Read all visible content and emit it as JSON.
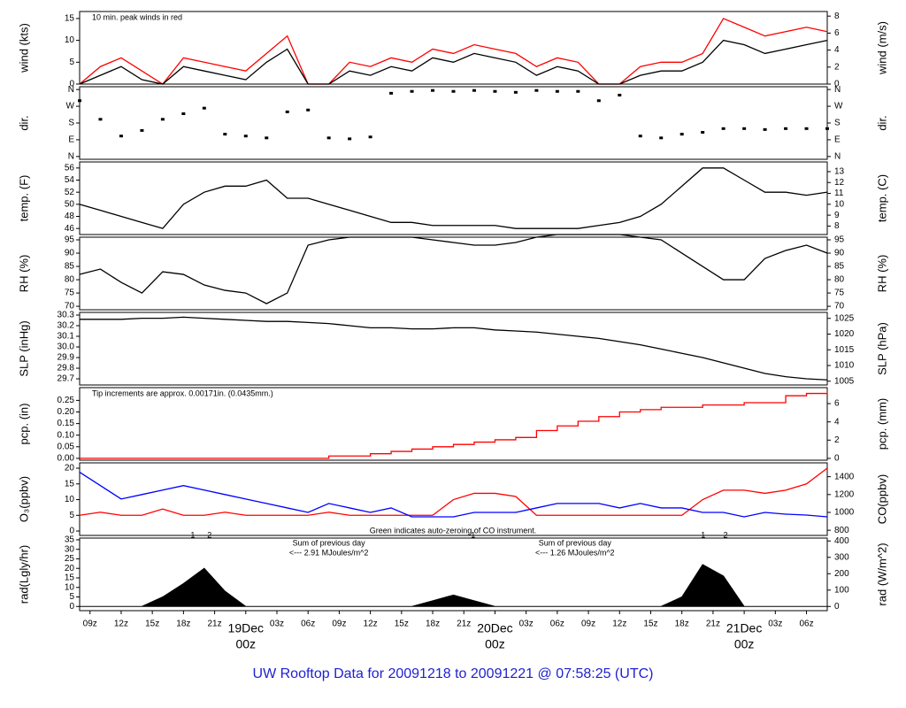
{
  "footer_title": "UW Rooftop Data for 20091218  to  20091221 @ 07:58:25  (UTC)",
  "chart_data": [
    {
      "type": "line",
      "ylabel": "wind (kts)",
      "y2label": "wind (m/s)",
      "note": "10 min. peak winds in red",
      "x": [
        8,
        10,
        12,
        14,
        16,
        18,
        20,
        22,
        24,
        26,
        28,
        30,
        32,
        34,
        36,
        38,
        40,
        42,
        44,
        46,
        48,
        50,
        52,
        54,
        56,
        58,
        60,
        62,
        64,
        66,
        68,
        70,
        72,
        74,
        76,
        78,
        80
      ],
      "xlim": [
        8,
        80
      ],
      "ylim": [
        0,
        16.6
      ],
      "yticks": [
        0,
        5,
        10,
        15
      ],
      "y2lim": [
        0,
        8.54
      ],
      "y2ticks": [
        0,
        2,
        4,
        6,
        8
      ],
      "series": [
        {
          "color": "#ff0000",
          "values": [
            0,
            4,
            6,
            3,
            0,
            6,
            5,
            4,
            3,
            7,
            11,
            0,
            0,
            5,
            4,
            6,
            5,
            8,
            7,
            9,
            8,
            7,
            4,
            6,
            5,
            0,
            0,
            4,
            5,
            5,
            7,
            15,
            13,
            11,
            12,
            13,
            12
          ]
        },
        {
          "color": "#000000",
          "values": [
            0,
            2,
            4,
            1,
            0,
            4,
            3,
            2,
            1,
            5,
            8,
            0,
            0,
            3,
            2,
            4,
            3,
            6,
            5,
            7,
            6,
            5,
            2,
            4,
            3,
            0,
            0,
            2,
            3,
            3,
            5,
            10,
            9,
            7,
            8,
            9,
            10
          ]
        }
      ]
    },
    {
      "type": "scatter",
      "ylabel": "dir.",
      "y2label": "dir.",
      "x": [
        8,
        10,
        12,
        14,
        16,
        18,
        20,
        22,
        24,
        26,
        28,
        30,
        32,
        34,
        36,
        38,
        40,
        42,
        44,
        46,
        48,
        50,
        52,
        54,
        56,
        58,
        60,
        62,
        64,
        66,
        68,
        70,
        72,
        74,
        76,
        78,
        80
      ],
      "xlim": [
        8,
        80
      ],
      "ylim": [
        -15,
        375
      ],
      "yticks": [
        {
          "value": 0,
          "label": "N"
        },
        {
          "value": 90,
          "label": "E"
        },
        {
          "value": 180,
          "label": "S"
        },
        {
          "value": 270,
          "label": "W"
        },
        {
          "value": 360,
          "label": "N"
        }
      ],
      "y2lim": [
        -15,
        375
      ],
      "y2ticks": [
        {
          "value": 0,
          "label": "N"
        },
        {
          "value": 90,
          "label": "E"
        },
        {
          "value": 180,
          "label": "S"
        },
        {
          "value": 270,
          "label": "W"
        },
        {
          "value": 360,
          "label": "N"
        }
      ],
      "series": [
        {
          "color": "#000000",
          "values": [
            300,
            200,
            110,
            140,
            200,
            230,
            260,
            120,
            110,
            100,
            240,
            250,
            100,
            95,
            105,
            340,
            350,
            355,
            350,
            355,
            350,
            345,
            355,
            350,
            350,
            300,
            330,
            110,
            100,
            120,
            130,
            150,
            150,
            145,
            150,
            150,
            150
          ]
        }
      ]
    },
    {
      "type": "line",
      "ylabel": "temp. (F)",
      "y2label": "temp. (C)",
      "x": [
        8,
        10,
        12,
        14,
        16,
        18,
        20,
        22,
        24,
        26,
        28,
        30,
        32,
        34,
        36,
        38,
        40,
        42,
        44,
        46,
        48,
        50,
        52,
        54,
        56,
        58,
        60,
        62,
        64,
        66,
        68,
        70,
        72,
        74,
        76,
        78,
        80
      ],
      "xlim": [
        8,
        80
      ],
      "ylim": [
        45,
        57
      ],
      "yticks": [
        46,
        48,
        50,
        52,
        54,
        56
      ],
      "y2lim": [
        7.22,
        13.89
      ],
      "y2ticks": [
        8,
        9,
        10,
        11,
        12,
        13
      ],
      "series": [
        {
          "color": "#000000",
          "values": [
            50,
            49,
            48,
            47,
            46,
            50,
            52,
            53,
            53,
            54,
            51,
            51,
            50,
            49,
            48,
            47,
            47,
            46.5,
            46.5,
            46.5,
            46.5,
            46,
            46,
            46,
            46,
            46.5,
            47,
            48,
            50,
            53,
            56,
            56,
            54,
            52,
            52,
            51.5,
            52
          ]
        }
      ]
    },
    {
      "type": "line",
      "ylabel": "RH (%)",
      "y2label": "RH (%)",
      "x": [
        8,
        10,
        12,
        14,
        16,
        18,
        20,
        22,
        24,
        26,
        28,
        30,
        32,
        34,
        36,
        38,
        40,
        42,
        44,
        46,
        48,
        50,
        52,
        54,
        56,
        58,
        60,
        62,
        64,
        66,
        68,
        70,
        72,
        74,
        76,
        78,
        80
      ],
      "xlim": [
        8,
        80
      ],
      "ylim": [
        68.7,
        96
      ],
      "yticks": [
        70,
        75,
        80,
        85,
        90,
        95
      ],
      "y2lim": [
        68.7,
        96
      ],
      "y2ticks": [
        70,
        75,
        80,
        85,
        90,
        95
      ],
      "series": [
        {
          "color": "#000000",
          "values": [
            82,
            84,
            79,
            75,
            83,
            82,
            78,
            76,
            75,
            71,
            75,
            93,
            95,
            96,
            96,
            96,
            96,
            95,
            94,
            93,
            93,
            94,
            96,
            97,
            97,
            97,
            97,
            96,
            95,
            90,
            85,
            80,
            80,
            88,
            91,
            93,
            90
          ]
        }
      ]
    },
    {
      "type": "line",
      "ylabel": "SLP (inHg)",
      "y2label": "SLP (hPa)",
      "x": [
        8,
        10,
        12,
        14,
        16,
        18,
        20,
        22,
        24,
        26,
        28,
        30,
        32,
        34,
        36,
        38,
        40,
        42,
        44,
        46,
        48,
        50,
        52,
        54,
        56,
        58,
        60,
        62,
        64,
        66,
        68,
        70,
        72,
        74,
        76,
        78,
        80
      ],
      "xlim": [
        8,
        80
      ],
      "ylim": [
        29.642,
        30.325
      ],
      "yticks": [
        29.7,
        29.8,
        29.9,
        {
          "value": 30,
          "label": "30.0"
        },
        30.1,
        30.2,
        30.3
      ],
      "y2lim": [
        1003.8,
        1026.9
      ],
      "y2ticks": [
        1005,
        1010,
        1015,
        1020,
        1025
      ],
      "series": [
        {
          "color": "#000000",
          "values": [
            30.26,
            30.26,
            30.26,
            30.27,
            30.27,
            30.28,
            30.27,
            30.26,
            30.25,
            30.24,
            30.24,
            30.23,
            30.22,
            30.2,
            30.18,
            30.18,
            30.17,
            30.17,
            30.18,
            30.18,
            30.16,
            30.15,
            30.14,
            30.12,
            30.1,
            30.08,
            30.05,
            30.02,
            29.98,
            29.94,
            29.9,
            29.85,
            29.8,
            29.75,
            29.72,
            29.7,
            29.69
          ]
        }
      ]
    },
    {
      "type": "step",
      "ylabel": "pcp. (in)",
      "y2label": "pcp. (mm)",
      "note": "Tip increments are approx. 0.00171in. (0.0435mm.)",
      "x": [
        8,
        10,
        12,
        14,
        16,
        18,
        20,
        22,
        24,
        26,
        28,
        30,
        32,
        34,
        36,
        38,
        40,
        42,
        44,
        46,
        48,
        50,
        52,
        54,
        56,
        58,
        60,
        62,
        64,
        66,
        68,
        70,
        72,
        74,
        76,
        78,
        80
      ],
      "xlim": [
        8,
        80
      ],
      "ylim": [
        -0.008,
        0.305
      ],
      "yticks": [
        {
          "value": 0,
          "label": "0.00"
        },
        0.05,
        {
          "value": 0.1,
          "label": "0.10"
        },
        0.15,
        {
          "value": 0.2,
          "label": "0.20"
        },
        0.25
      ],
      "y2lim": [
        -0.2,
        7.75
      ],
      "y2ticks": [
        0,
        2,
        4,
        6
      ],
      "series": [
        {
          "color": "#ff0000",
          "values": [
            0,
            0,
            0,
            0,
            0,
            0,
            0,
            0,
            0,
            0,
            0,
            0,
            0.01,
            0.01,
            0.02,
            0.03,
            0.04,
            0.05,
            0.06,
            0.07,
            0.08,
            0.09,
            0.12,
            0.14,
            0.16,
            0.18,
            0.2,
            0.21,
            0.22,
            0.22,
            0.23,
            0.23,
            0.24,
            0.24,
            0.27,
            0.28,
            0.29
          ]
        }
      ]
    },
    {
      "type": "line",
      "ylabel": "O₃(ppbv)",
      "y2label": "CO(ppbv)",
      "note": "Green indicates auto-zeroing of CO instrument.",
      "x": [
        8,
        10,
        12,
        14,
        16,
        18,
        20,
        22,
        24,
        26,
        28,
        30,
        32,
        34,
        36,
        38,
        40,
        42,
        44,
        46,
        48,
        50,
        52,
        54,
        56,
        58,
        60,
        62,
        64,
        66,
        68,
        70,
        72,
        74,
        76,
        78,
        80
      ],
      "xlim": [
        8,
        80
      ],
      "ylim": [
        -1.4,
        21.7
      ],
      "yticks": [
        0,
        5,
        10,
        15,
        20
      ],
      "y2lim": [
        742,
        1555
      ],
      "y2ticks": [
        800,
        1000,
        1200,
        1400
      ],
      "series": [
        {
          "color": "#ff0000",
          "values": [
            5,
            6,
            5,
            5,
            7,
            5,
            5,
            6,
            5,
            5,
            5,
            5,
            6,
            5,
            5,
            5,
            5,
            5,
            10,
            12,
            12,
            11,
            5,
            5,
            5,
            5,
            5,
            5,
            5,
            5,
            10,
            13,
            13,
            12,
            13,
            15,
            20
          ]
        },
        {
          "color": "#0000ff",
          "axis": "y2",
          "values": [
            1450,
            1300,
            1150,
            1200,
            1250,
            1300,
            1250,
            1200,
            1150,
            1100,
            1050,
            1000,
            1100,
            1050,
            1000,
            1050,
            950,
            950,
            950,
            1000,
            1000,
            1000,
            1050,
            1100,
            1100,
            1100,
            1050,
            1100,
            1050,
            1050,
            1000,
            1000,
            950,
            1000,
            980,
            970,
            950
          ]
        }
      ]
    },
    {
      "type": "area",
      "ylabel": "rad(Lgly/hr)",
      "y2label": "rad (W/m^2)",
      "x": [
        8,
        10,
        12,
        14,
        16,
        18,
        20,
        22,
        24,
        26,
        28,
        30,
        32,
        34,
        36,
        38,
        40,
        42,
        44,
        46,
        48,
        50,
        52,
        54,
        56,
        58,
        60,
        62,
        64,
        66,
        68,
        70,
        72,
        74,
        76,
        78,
        80
      ],
      "xlim": [
        8,
        80
      ],
      "ylim": [
        -2.2,
        35.9
      ],
      "yticks": [
        0,
        5,
        10,
        15,
        20,
        25,
        30,
        35
      ],
      "y2lim": [
        -25.6,
        417.5
      ],
      "y2ticks": [
        0,
        100,
        200,
        300,
        400
      ],
      "xticks": [
        {
          "value": 9,
          "label": "09z"
        },
        {
          "value": 12,
          "label": "12z"
        },
        {
          "value": 15,
          "label": "15z"
        },
        {
          "value": 18,
          "label": "18z"
        },
        {
          "value": 21,
          "label": "21z"
        },
        {
          "value": 24,
          "label": "00z"
        },
        {
          "value": 27,
          "label": "03z"
        },
        {
          "value": 30,
          "label": "06z"
        },
        {
          "value": 33,
          "label": "09z"
        },
        {
          "value": 36,
          "label": "12z"
        },
        {
          "value": 39,
          "label": "15z"
        },
        {
          "value": 42,
          "label": "18z"
        },
        {
          "value": 45,
          "label": "21z"
        },
        {
          "value": 48,
          "label": "00z"
        },
        {
          "value": 51,
          "label": "03z"
        },
        {
          "value": 54,
          "label": "06z"
        },
        {
          "value": 57,
          "label": "09z"
        },
        {
          "value": 60,
          "label": "12z"
        },
        {
          "value": 63,
          "label": "15z"
        },
        {
          "value": 66,
          "label": "18z"
        },
        {
          "value": 69,
          "label": "21z"
        },
        {
          "value": 72,
          "label": "00z"
        },
        {
          "value": 75,
          "label": "03z"
        },
        {
          "value": 78,
          "label": "06z"
        }
      ],
      "date_ticks": [
        {
          "value": 24,
          "label": "19Dec"
        },
        {
          "value": 48,
          "label": "20Dec"
        },
        {
          "value": 72,
          "label": "21Dec"
        }
      ],
      "markers": [
        {
          "x": 18.9,
          "text": "1"
        },
        {
          "x": 20.5,
          "text": "2"
        },
        {
          "x": 45.9,
          "text": "1"
        },
        {
          "x": 68.05,
          "text": "1"
        },
        {
          "x": 70.2,
          "text": "2"
        }
      ],
      "annotations": [
        {
          "x": 32,
          "text": "Sum of previous day",
          "text2": "<--- 2.91 MJoules/m^2"
        },
        {
          "x": 55.7,
          "text": "Sum of previous day",
          "text2": "<--- 1.26 MJoules/m^2"
        }
      ],
      "series": [
        {
          "color": "#000000",
          "values": [
            0,
            0,
            0,
            0,
            5,
            12,
            20,
            8,
            0,
            0,
            0,
            0,
            0,
            0,
            0,
            0,
            0,
            3,
            6,
            3,
            0,
            0,
            0,
            0,
            0,
            0,
            0,
            0,
            0,
            5,
            22,
            16,
            0,
            0,
            0,
            0,
            0
          ]
        }
      ]
    }
  ]
}
